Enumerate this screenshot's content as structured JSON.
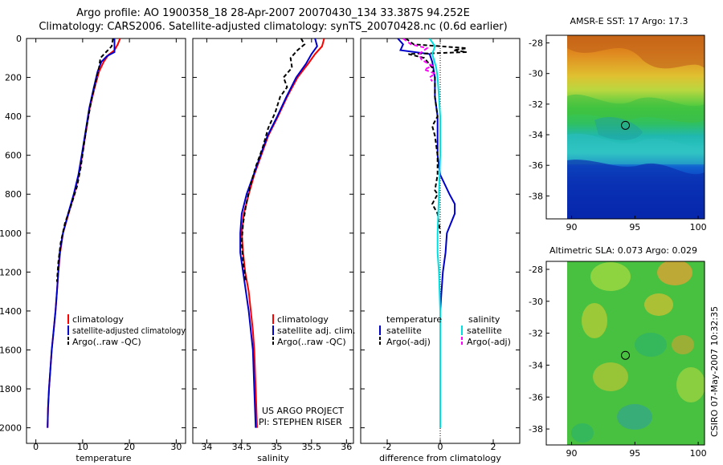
{
  "header": {
    "title_line1": "Argo profile: AO 1900358_18 28-Apr-2007 20070430_134 33.387S 94.252E",
    "title_line2": "Climatology: CARS2006. Satellite-adjusted climatology: synTS_20070428.nc (0.6d earlier)"
  },
  "colors": {
    "climatology": "#ff0000",
    "satellite": "#0000cc",
    "argo": "#000000",
    "sal_satellite": "#00e0e0",
    "sal_argo": "#ff00ff"
  },
  "chart_data": [
    {
      "type": "line",
      "name": "temperature-profile",
      "xlabel": "temperature",
      "ylabel": "",
      "xlim": [
        -2,
        32
      ],
      "ylim": [
        2080,
        0
      ],
      "xticks": [
        0,
        10,
        20,
        30
      ],
      "yticks": [
        0,
        200,
        400,
        600,
        800,
        1000,
        1200,
        1400,
        1600,
        1800,
        2000
      ],
      "series": [
        {
          "name": "climatology",
          "color": "#ff0000",
          "dash": "",
          "points": [
            [
              18,
              0
            ],
            [
              17.5,
              30
            ],
            [
              16.8,
              60
            ],
            [
              15.5,
              85
            ],
            [
              14.5,
              120
            ],
            [
              13.5,
              170
            ],
            [
              12.6,
              250
            ],
            [
              11.5,
              360
            ],
            [
              10.7,
              480
            ],
            [
              9.9,
              600
            ],
            [
              9.2,
              700
            ],
            [
              8.2,
              800
            ],
            [
              7,
              900
            ],
            [
              5.8,
              1000
            ],
            [
              5.2,
              1100
            ],
            [
              4.8,
              1200
            ],
            [
              4.5,
              1300
            ],
            [
              4.2,
              1400
            ],
            [
              3.8,
              1500
            ],
            [
              3.4,
              1600
            ],
            [
              3.1,
              1700
            ],
            [
              2.8,
              1800
            ],
            [
              2.6,
              1900
            ],
            [
              2.5,
              2000
            ]
          ]
        },
        {
          "name": "satellite-adjusted climatology",
          "color": "#0000cc",
          "dash": "",
          "points": [
            [
              16.8,
              0
            ],
            [
              16.8,
              70
            ],
            [
              15.2,
              90
            ],
            [
              14,
              120
            ],
            [
              13.2,
              170
            ],
            [
              12.4,
              250
            ],
            [
              11.4,
              360
            ],
            [
              10.6,
              480
            ],
            [
              9.8,
              600
            ],
            [
              9.1,
              700
            ],
            [
              8.1,
              800
            ],
            [
              6.9,
              900
            ],
            [
              5.8,
              1000
            ],
            [
              5.1,
              1100
            ],
            [
              4.8,
              1200
            ],
            [
              4.5,
              1300
            ],
            [
              4.2,
              1400
            ],
            [
              3.8,
              1500
            ],
            [
              3.4,
              1600
            ],
            [
              3.1,
              1700
            ],
            [
              2.8,
              1800
            ],
            [
              2.6,
              1900
            ],
            [
              2.5,
              2000
            ]
          ]
        },
        {
          "name": "Argo(..raw -QC)",
          "color": "#000000",
          "dash": "5,3",
          "points": [
            [
              16.5,
              0
            ],
            [
              16.2,
              40
            ],
            [
              15,
              70
            ],
            [
              13.8,
              100
            ],
            [
              13.5,
              150
            ],
            [
              12.8,
              220
            ],
            [
              12,
              300
            ],
            [
              11.4,
              380
            ],
            [
              10.8,
              460
            ],
            [
              10.2,
              560
            ],
            [
              9.6,
              660
            ],
            [
              8.8,
              760
            ],
            [
              7.5,
              860
            ],
            [
              6.2,
              950
            ],
            [
              5.3,
              1050
            ],
            [
              4.8,
              1150
            ],
            [
              4.5,
              1250
            ]
          ]
        }
      ],
      "legend": {
        "placement": "lower-middle",
        "entries": [
          "climatology",
          "satellite-adjusted climatology",
          "Argo(..raw -QC)"
        ]
      }
    },
    {
      "type": "line",
      "name": "salinity-profile",
      "xlabel": "salinity",
      "xlim": [
        33.8,
        36.1
      ],
      "ylim": [
        2080,
        0
      ],
      "xticks": [
        34,
        34.5,
        35,
        35.5,
        36
      ],
      "series": [
        {
          "name": "climatology",
          "color": "#ff0000",
          "dash": "",
          "points": [
            [
              35.68,
              0
            ],
            [
              35.65,
              40
            ],
            [
              35.55,
              80
            ],
            [
              35.45,
              130
            ],
            [
              35.3,
              200
            ],
            [
              35.15,
              300
            ],
            [
              35.02,
              400
            ],
            [
              34.88,
              500
            ],
            [
              34.78,
              600
            ],
            [
              34.68,
              700
            ],
            [
              34.6,
              800
            ],
            [
              34.53,
              900
            ],
            [
              34.5,
              1000
            ],
            [
              34.52,
              1100
            ],
            [
              34.55,
              1200
            ],
            [
              34.6,
              1300
            ],
            [
              34.63,
              1400
            ],
            [
              34.66,
              1500
            ],
            [
              34.68,
              1600
            ],
            [
              34.7,
              1800
            ],
            [
              34.72,
              2000
            ]
          ]
        },
        {
          "name": "satellite adj. clim.",
          "color": "#0000cc",
          "dash": "",
          "points": [
            [
              35.55,
              0
            ],
            [
              35.58,
              40
            ],
            [
              35.5,
              80
            ],
            [
              35.42,
              130
            ],
            [
              35.28,
              200
            ],
            [
              35.14,
              300
            ],
            [
              35.01,
              400
            ],
            [
              34.87,
              500
            ],
            [
              34.77,
              600
            ],
            [
              34.67,
              700
            ],
            [
              34.57,
              800
            ],
            [
              34.5,
              900
            ],
            [
              34.48,
              1000
            ],
            [
              34.48,
              1100
            ],
            [
              34.52,
              1200
            ],
            [
              34.56,
              1300
            ],
            [
              34.6,
              1400
            ],
            [
              34.63,
              1500
            ],
            [
              34.66,
              1600
            ],
            [
              34.68,
              1800
            ],
            [
              34.7,
              2000
            ]
          ]
        },
        {
          "name": "Argo(..raw -QC)",
          "color": "#000000",
          "dash": "5,3",
          "points": [
            [
              35.35,
              0
            ],
            [
              35.4,
              30
            ],
            [
              35.3,
              60
            ],
            [
              35.2,
              100
            ],
            [
              35.22,
              150
            ],
            [
              35.1,
              200
            ],
            [
              35.15,
              250
            ],
            [
              35.05,
              300
            ],
            [
              34.98,
              380
            ],
            [
              34.88,
              460
            ],
            [
              34.8,
              560
            ],
            [
              34.7,
              660
            ],
            [
              34.62,
              760
            ],
            [
              34.56,
              860
            ],
            [
              34.52,
              950
            ],
            [
              34.5,
              1050
            ],
            [
              34.52,
              1150
            ],
            [
              34.56,
              1250
            ]
          ]
        }
      ],
      "legend": {
        "placement": "lower-middle",
        "entries": [
          "climatology",
          "satellite adj. clim.",
          "Argo(..raw -QC)"
        ]
      },
      "annotations": [
        "US ARGO PROJECT",
        "PI: STEPHEN RISER"
      ]
    },
    {
      "type": "line",
      "name": "difference-profile",
      "xlabel": "difference from climatology",
      "xlim": [
        -3,
        3
      ],
      "ylim": [
        2080,
        0
      ],
      "xticks": [
        -2,
        0,
        2
      ],
      "series": [
        {
          "name": "temperature satellite",
          "color": "#0000cc",
          "dash": "",
          "points": [
            [
              -1.6,
              0
            ],
            [
              -1.4,
              30
            ],
            [
              -1.5,
              60
            ],
            [
              -0.4,
              80
            ],
            [
              -0.3,
              120
            ],
            [
              -0.2,
              200
            ],
            [
              -0.2,
              300
            ],
            [
              -0.1,
              400
            ],
            [
              -0.1,
              500
            ],
            [
              -0.1,
              600
            ],
            [
              0,
              700
            ],
            [
              0.35,
              800
            ],
            [
              0.55,
              850
            ],
            [
              0.55,
              900
            ],
            [
              0.4,
              950
            ],
            [
              0.25,
              1000
            ],
            [
              0.2,
              1100
            ],
            [
              0.1,
              1200
            ],
            [
              0.05,
              1300
            ],
            [
              0,
              1400
            ],
            [
              0,
              1600
            ],
            [
              0,
              1800
            ],
            [
              0,
              2000
            ]
          ]
        },
        {
          "name": "temperature Argo(-adj)",
          "color": "#000000",
          "dash": "5,3",
          "points": [
            [
              -1.3,
              0
            ],
            [
              -1.0,
              30
            ],
            [
              1.0,
              50
            ],
            [
              0.5,
              60
            ],
            [
              1.0,
              70
            ],
            [
              -1.2,
              80
            ],
            [
              -0.6,
              100
            ],
            [
              -0.3,
              150
            ],
            [
              -0.2,
              200
            ],
            [
              -0.2,
              300
            ],
            [
              -0.1,
              400
            ],
            [
              -0.3,
              450
            ],
            [
              -0.2,
              500
            ],
            [
              -0.1,
              600
            ],
            [
              -0.1,
              700
            ],
            [
              -0.2,
              780
            ],
            [
              -0.1,
              800
            ],
            [
              -0.3,
              850
            ],
            [
              -0.1,
              900
            ],
            [
              0,
              1000
            ]
          ]
        },
        {
          "name": "salinity satellite",
          "color": "#00e0e0",
          "dash": "",
          "points": [
            [
              -0.4,
              0
            ],
            [
              -0.2,
              40
            ],
            [
              -0.3,
              80
            ],
            [
              -0.15,
              150
            ],
            [
              -0.1,
              200
            ],
            [
              -0.05,
              300
            ],
            [
              0,
              400
            ],
            [
              0,
              600
            ],
            [
              -0.05,
              800
            ],
            [
              -0.1,
              1000
            ],
            [
              -0.1,
              1100
            ],
            [
              -0.05,
              1200
            ],
            [
              0,
              1400
            ],
            [
              0,
              1600
            ],
            [
              0,
              1800
            ],
            [
              0,
              2000
            ]
          ]
        },
        {
          "name": "salinity Argo(-adj)",
          "color": "#ff00ff",
          "dash": "5,3",
          "points": [
            [
              -1.4,
              0
            ],
            [
              -1.1,
              30
            ],
            [
              -0.5,
              50
            ],
            [
              -0.8,
              80
            ],
            [
              -0.7,
              110
            ],
            [
              -0.3,
              140
            ],
            [
              -0.6,
              160
            ],
            [
              -0.2,
              180
            ],
            [
              -0.4,
              200
            ],
            [
              -0.3,
              220
            ]
          ]
        }
      ],
      "zero_line": 0,
      "legend": {
        "placement": "lower-middle",
        "headers": [
          "temperature",
          "salinity"
        ],
        "entries": [
          "satellite",
          "Argo(-adj)",
          "satellite",
          "Argo(-adj)"
        ]
      }
    },
    {
      "type": "heatmap",
      "name": "amsr-sst-map",
      "title": "AMSR-E SST: 17 Argo: 17.3",
      "xlim": [
        88,
        100.5
      ],
      "ylim": [
        -39.5,
        -27.5
      ],
      "xticks": [
        90,
        95,
        100
      ],
      "yticks": [
        -28,
        -30,
        -32,
        -34,
        -36,
        -38
      ],
      "data_extent": {
        "lon": [
          90,
          100
        ],
        "lat": [
          -39.5,
          -27.5
        ]
      },
      "marker": {
        "lon": 94.252,
        "lat": -33.387
      }
    },
    {
      "type": "heatmap",
      "name": "altimetric-sla-map",
      "title": "Altimetric SLA: 0.073 Argo: 0.029",
      "xlim": [
        88,
        100.5
      ],
      "ylim": [
        -39,
        -27.5
      ],
      "xticks": [
        90,
        95,
        100
      ],
      "yticks": [
        -28,
        -30,
        -32,
        -34,
        -36,
        -38
      ],
      "data_extent": {
        "lon": [
          90,
          100
        ],
        "lat": [
          -39,
          -27.5
        ]
      },
      "marker": {
        "lon": 94.252,
        "lat": -33.387
      }
    }
  ],
  "side_stamp": "CSIRO 07-May-2007 10:32:35"
}
